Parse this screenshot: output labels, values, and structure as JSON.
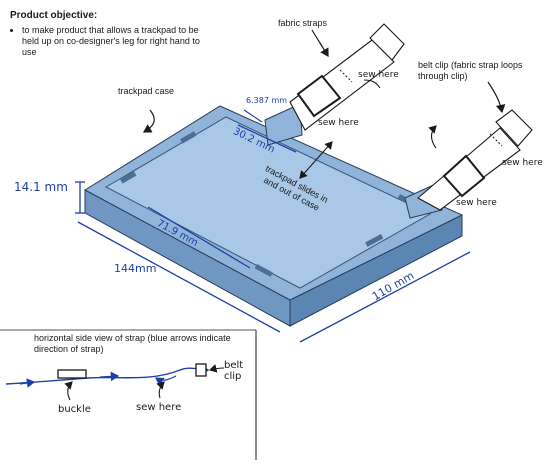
{
  "objective": {
    "title": "Product objective:",
    "bullet": "to make product that allows a trackpad to be held up on co-designer's leg for right hand to use"
  },
  "labels": {
    "fabric_straps": "fabric straps",
    "belt_clip": "belt clip (fabric strap loops through clip)",
    "trackpad_case": "trackpad case",
    "sew_here_top": "sew here",
    "sew_here_right_upper": "sew here",
    "sew_here_right_lower": "sew here",
    "sew_here_side": "sew here",
    "slides": "trackpad slides in and out of case",
    "side_view_title": "horizontal side view of strap (blue arrows indicate direction of strap)",
    "buckle": "buckle",
    "belt_clip_side": "belt clip"
  },
  "dimensions": {
    "height": "14.1 mm",
    "length": "144mm",
    "width": "110 mm",
    "inner_width": "71.9 mm",
    "tab_width": "30.2 mm",
    "tab_depth": "6.387 mm"
  },
  "colors": {
    "case_top": "#8fb3d9",
    "case_side": "#6f97c2",
    "case_inner": "#a9c7e6",
    "dimension_blue": "#1e3fa8",
    "ink": "#1a1a1a"
  }
}
